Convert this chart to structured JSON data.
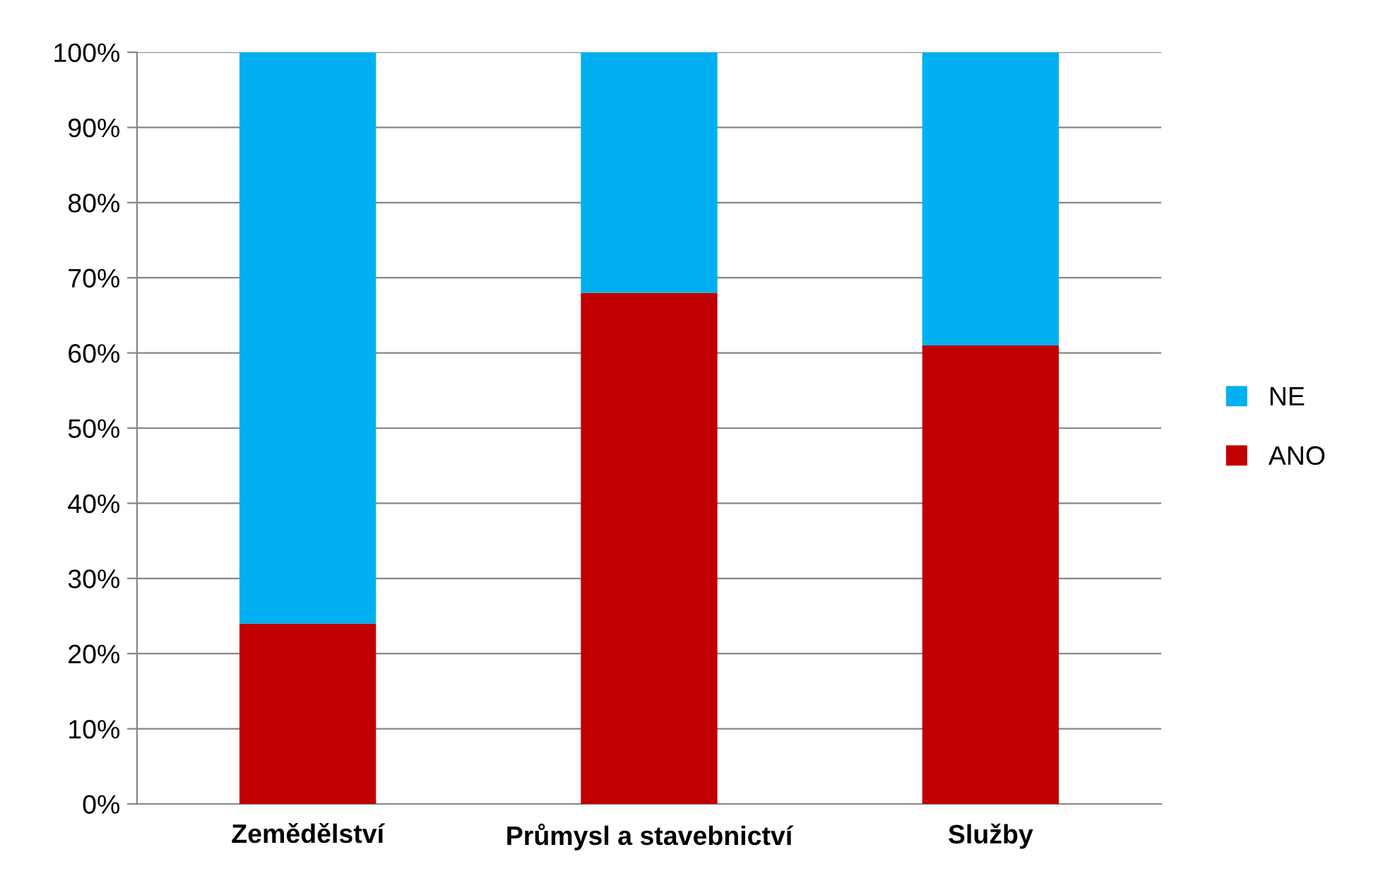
{
  "chart_data": {
    "type": "bar",
    "stacked": true,
    "categories": [
      "Zemědělství",
      "Průmysl a stavebnictví",
      "Služby"
    ],
    "series": [
      {
        "name": "ANO",
        "color": "#c00000",
        "values": [
          24,
          68,
          61
        ]
      },
      {
        "name": "NE",
        "color": "#00b0f0",
        "values": [
          76,
          32,
          39
        ]
      }
    ],
    "ylim": [
      0,
      100
    ],
    "yticks": [
      {
        "value": 0,
        "label": "0%"
      },
      {
        "value": 10,
        "label": "10%"
      },
      {
        "value": 20,
        "label": "20%"
      },
      {
        "value": 30,
        "label": "30%"
      },
      {
        "value": 40,
        "label": "40%"
      },
      {
        "value": 50,
        "label": "50%"
      },
      {
        "value": 60,
        "label": "60%"
      },
      {
        "value": 70,
        "label": "70%"
      },
      {
        "value": 80,
        "label": "80%"
      },
      {
        "value": 90,
        "label": "90%"
      },
      {
        "value": 100,
        "label": "100%"
      }
    ],
    "grid": "y",
    "legend": "right"
  }
}
